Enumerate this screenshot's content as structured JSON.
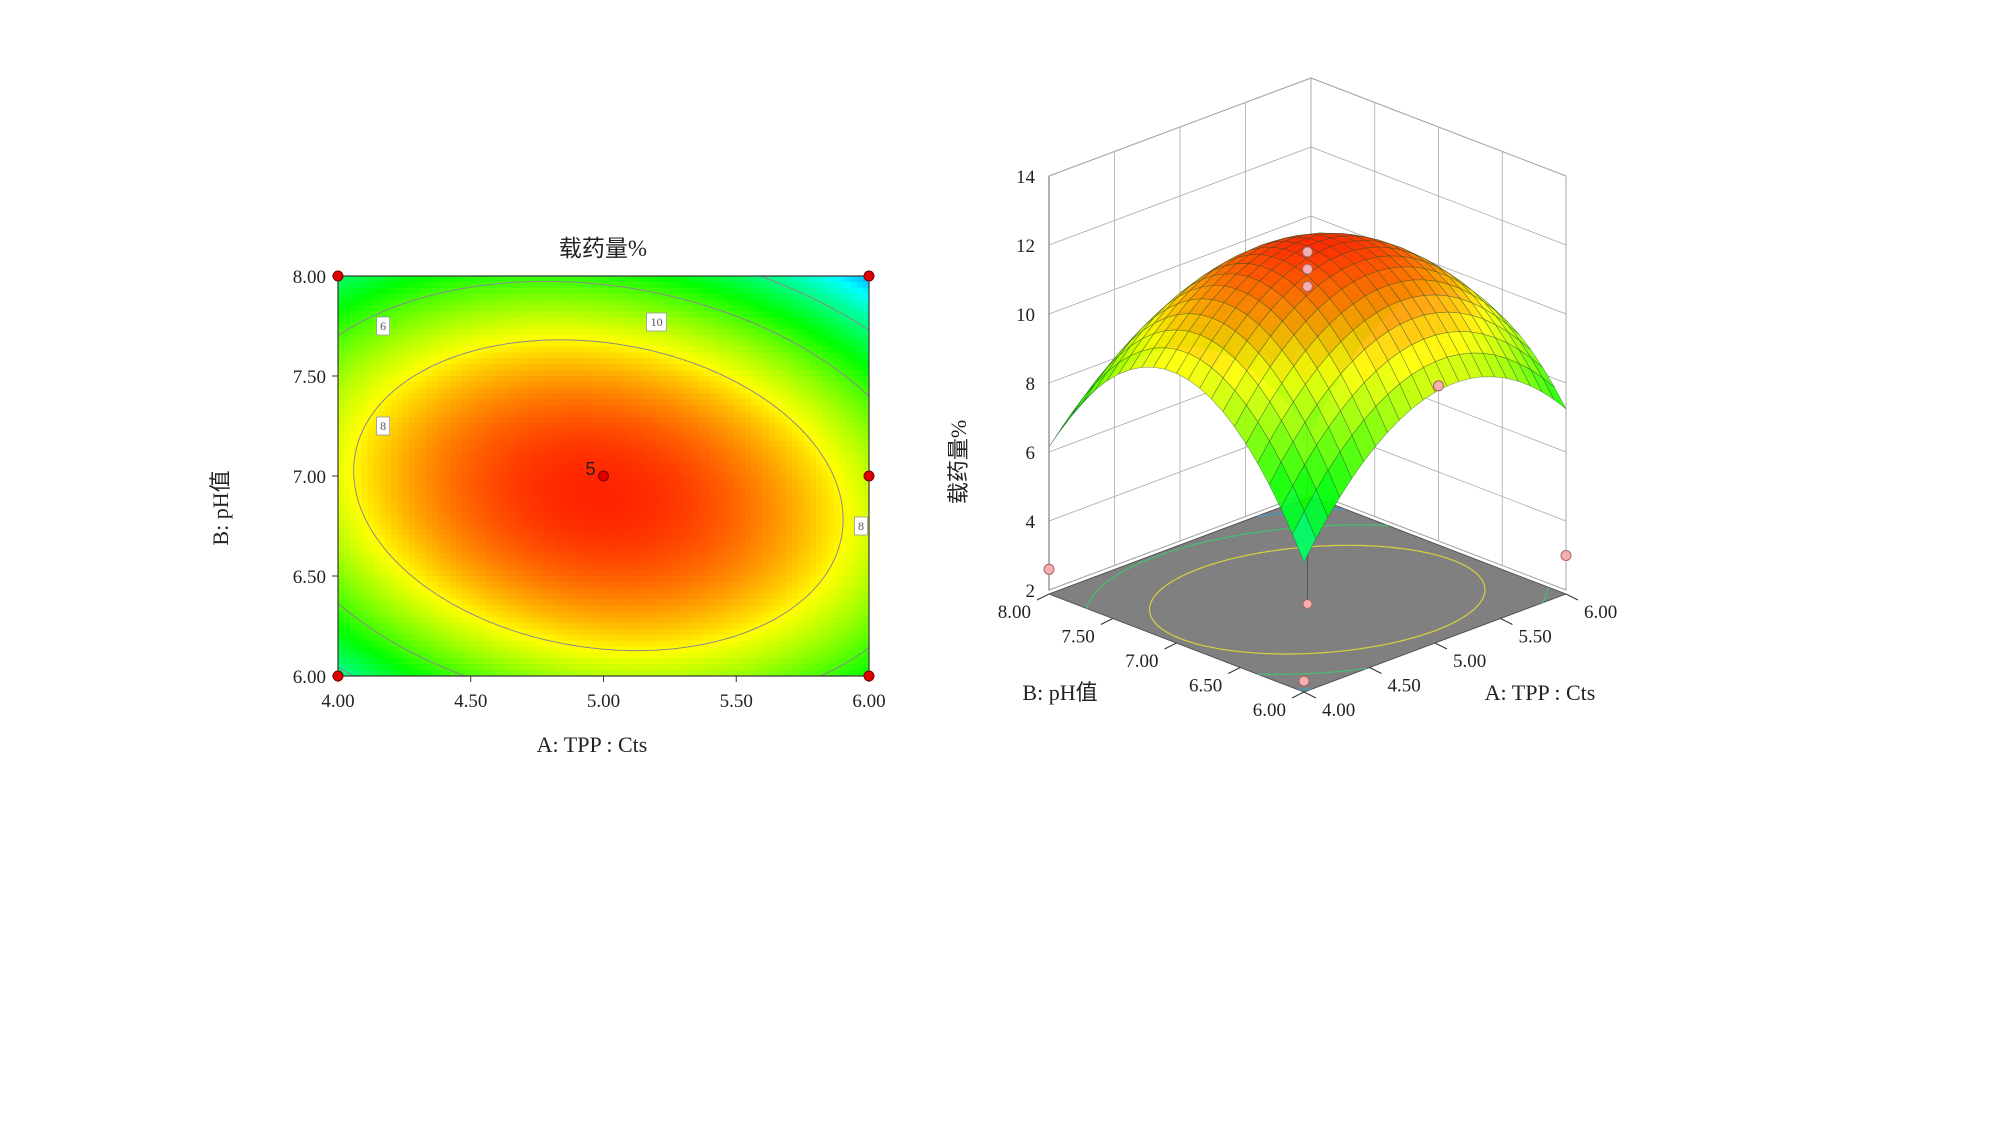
{
  "chart_data": [
    {
      "type": "heatmap",
      "subtype": "contour",
      "title": "载药量%",
      "xlabel": "A: TPP : Cts",
      "ylabel": "B: pH值",
      "xlim": [
        4.0,
        6.0
      ],
      "ylim": [
        6.0,
        8.0
      ],
      "x_ticks": [
        "4.00",
        "4.50",
        "5.00",
        "5.50",
        "6.00"
      ],
      "y_ticks": [
        "6.00",
        "6.50",
        "7.00",
        "7.50",
        "8.00"
      ],
      "color_scale": [
        "#0000ff",
        "#00ffff",
        "#00ff00",
        "#ffff00",
        "#ff0000"
      ],
      "contour_levels": [
        {
          "level": 6,
          "label": "6"
        },
        {
          "level": 8,
          "label": "8"
        },
        {
          "level": 8,
          "label": "8"
        },
        {
          "level": 10,
          "label": "10"
        }
      ],
      "design_points": [
        {
          "x": 4.0,
          "y": 8.0
        },
        {
          "x": 6.0,
          "y": 8.0
        },
        {
          "x": 6.0,
          "y": 7.0
        },
        {
          "x": 4.0,
          "y": 6.0
        },
        {
          "x": 6.0,
          "y": 6.0
        },
        {
          "x": 5.0,
          "y": 7.0,
          "label": "5"
        }
      ]
    },
    {
      "type": "surface",
      "zlabel": "载药量%",
      "xlabel": "A: TPP : Cts",
      "ylabel": "B: pH值",
      "xlim": [
        4.0,
        6.0
      ],
      "ylim": [
        6.0,
        8.0
      ],
      "zlim": [
        2,
        14
      ],
      "x_ticks": [
        "4.00",
        "4.50",
        "5.00",
        "5.50",
        "6.00"
      ],
      "y_ticks": [
        "6.00",
        "6.50",
        "7.00",
        "7.50",
        "8.00"
      ],
      "z_ticks": [
        "2",
        "4",
        "6",
        "8",
        "10",
        "12",
        "14"
      ],
      "floor_color": "#808080",
      "design_points": [
        {
          "x": 4.0,
          "y": 8.0,
          "z": 2.6
        },
        {
          "x": 5.0,
          "y": 7.0,
          "z": 11.8
        },
        {
          "x": 5.0,
          "y": 7.0,
          "z": 11.3
        },
        {
          "x": 5.0,
          "y": 7.0,
          "z": 10.8
        },
        {
          "x": 6.0,
          "y": 6.0,
          "z": 3.0
        },
        {
          "x": 4.0,
          "y": 6.0,
          "z": 2.2
        },
        {
          "x": 6.0,
          "y": 7.0,
          "z": 6.5
        }
      ]
    }
  ]
}
